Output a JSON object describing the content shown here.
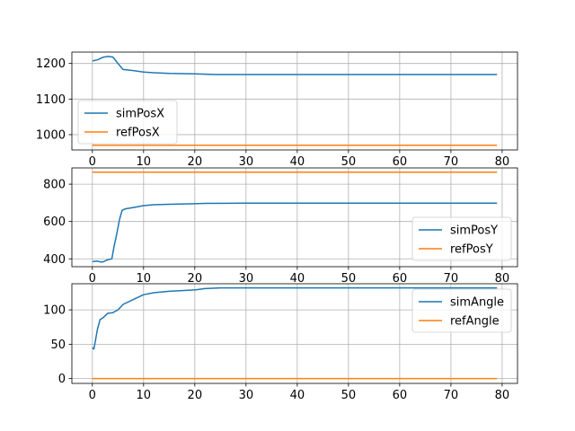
{
  "colors": {
    "series_sim": "#1f77b4",
    "series_ref": "#ff7f0e",
    "grid": "#b0b0b0",
    "axes": "#000000"
  },
  "chart_data": [
    {
      "type": "line",
      "grid": true,
      "legend_position": "lower-left",
      "xlim": [
        -4,
        83
      ],
      "ylim": [
        957,
        1232
      ],
      "xticks": [
        0,
        10,
        20,
        30,
        40,
        50,
        60,
        70,
        80
      ],
      "yticks": [
        1000,
        1100,
        1200
      ],
      "series": [
        {
          "name": "simPosX",
          "color": "#1f77b4",
          "points": [
            [
              0,
              1207
            ],
            [
              1,
              1210
            ],
            [
              2,
              1217
            ],
            [
              3,
              1220
            ],
            [
              4,
              1218
            ],
            [
              5,
              1200
            ],
            [
              6,
              1183
            ],
            [
              8,
              1180
            ],
            [
              10,
              1176
            ],
            [
              12,
              1174
            ],
            [
              15,
              1172
            ],
            [
              20,
              1171
            ],
            [
              22,
              1170
            ],
            [
              24,
              1169
            ],
            [
              30,
              1169
            ],
            [
              40,
              1169
            ],
            [
              50,
              1169
            ],
            [
              60,
              1169
            ],
            [
              70,
              1169
            ],
            [
              79,
              1169
            ]
          ]
        },
        {
          "name": "refPosX",
          "color": "#ff7f0e",
          "points": [
            [
              0,
              970
            ],
            [
              79,
              970
            ]
          ]
        }
      ]
    },
    {
      "type": "line",
      "grid": true,
      "legend_position": "lower-right",
      "xlim": [
        -4,
        83
      ],
      "ylim": [
        358,
        887
      ],
      "xticks": [
        0,
        10,
        20,
        30,
        40,
        50,
        60,
        70,
        80
      ],
      "yticks": [
        400,
        600,
        800
      ],
      "series": [
        {
          "name": "simPosY",
          "color": "#1f77b4",
          "points": [
            [
              0,
              385
            ],
            [
              1,
              388
            ],
            [
              1.5,
              384
            ],
            [
              2,
              383
            ],
            [
              3,
              395
            ],
            [
              3.8,
              400
            ],
            [
              4.2,
              460
            ],
            [
              4.8,
              540
            ],
            [
              5.3,
              610
            ],
            [
              5.8,
              660
            ],
            [
              6.5,
              668
            ],
            [
              8,
              675
            ],
            [
              10,
              685
            ],
            [
              12,
              690
            ],
            [
              15,
              692
            ],
            [
              20,
              695
            ],
            [
              22,
              697
            ],
            [
              30,
              698
            ],
            [
              40,
              698
            ],
            [
              50,
              698
            ],
            [
              60,
              698
            ],
            [
              70,
              698
            ],
            [
              79,
              698
            ]
          ]
        },
        {
          "name": "refPosY",
          "color": "#ff7f0e",
          "points": [
            [
              0,
              864
            ],
            [
              79,
              864
            ]
          ]
        }
      ]
    },
    {
      "type": "line",
      "grid": true,
      "legend_position": "upper-right",
      "xlim": [
        -4,
        83
      ],
      "ylim": [
        -7,
        138
      ],
      "xticks": [
        0,
        10,
        20,
        30,
        40,
        50,
        60,
        70,
        80
      ],
      "yticks": [
        0,
        50,
        100
      ],
      "series": [
        {
          "name": "simAngle",
          "color": "#1f77b4",
          "points": [
            [
              0,
              45
            ],
            [
              0.3,
              43
            ],
            [
              0.6,
              55
            ],
            [
              1,
              72
            ],
            [
              1.5,
              86
            ],
            [
              2,
              88
            ],
            [
              3,
              95
            ],
            [
              4,
              96
            ],
            [
              5,
              100
            ],
            [
              6,
              108
            ],
            [
              8,
              115
            ],
            [
              10,
              122
            ],
            [
              12,
              125
            ],
            [
              15,
              127
            ],
            [
              20,
              129
            ],
            [
              22,
              131
            ],
            [
              25,
              132
            ],
            [
              30,
              132
            ],
            [
              40,
              132
            ],
            [
              50,
              132
            ],
            [
              60,
              132
            ],
            [
              70,
              132
            ],
            [
              79,
              132
            ]
          ]
        },
        {
          "name": "refAngle",
          "color": "#ff7f0e",
          "points": [
            [
              0,
              0
            ],
            [
              79,
              0
            ]
          ]
        }
      ]
    }
  ]
}
